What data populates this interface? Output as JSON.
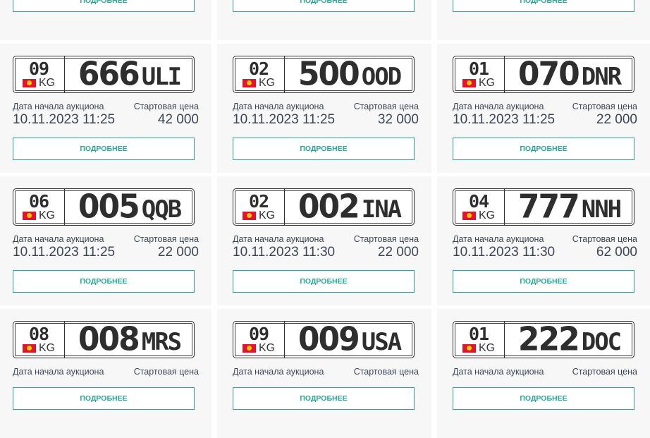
{
  "labels": {
    "date": "Дата начала аукциона",
    "price": "Стартовая цена",
    "details": "ПОДРОБНЕЕ",
    "country": "KG"
  },
  "colors": {
    "accent": "#27a996",
    "card_bg": "#f7f7f7",
    "text": "#3d4656"
  },
  "lots": [
    {
      "region": "",
      "digits": "",
      "letters": "",
      "date": "",
      "price": ""
    },
    {
      "region": "",
      "digits": "",
      "letters": "",
      "date": "",
      "price": ""
    },
    {
      "region": "",
      "digits": "",
      "letters": "",
      "date": "",
      "price": ""
    },
    {
      "region": "09",
      "digits": "666",
      "letters": "ULI",
      "date": "10.11.2023 11:25",
      "price": "42 000"
    },
    {
      "region": "02",
      "digits": "500",
      "letters": "OOD",
      "date": "10.11.2023 11:25",
      "price": "32 000"
    },
    {
      "region": "01",
      "digits": "070",
      "letters": "DNR",
      "date": "10.11.2023 11:25",
      "price": "22 000"
    },
    {
      "region": "06",
      "digits": "005",
      "letters": "QQB",
      "date": "10.11.2023 11:25",
      "price": "22 000"
    },
    {
      "region": "02",
      "digits": "002",
      "letters": "INA",
      "date": "10.11.2023 11:30",
      "price": "22 000"
    },
    {
      "region": "04",
      "digits": "777",
      "letters": "NNH",
      "date": "10.11.2023 11:30",
      "price": "62 000"
    },
    {
      "region": "08",
      "digits": "008",
      "letters": "MRS",
      "date": "",
      "price": ""
    },
    {
      "region": "09",
      "digits": "009",
      "letters": "USA",
      "date": "",
      "price": ""
    },
    {
      "region": "01",
      "digits": "222",
      "letters": "DOC",
      "date": "",
      "price": ""
    }
  ]
}
